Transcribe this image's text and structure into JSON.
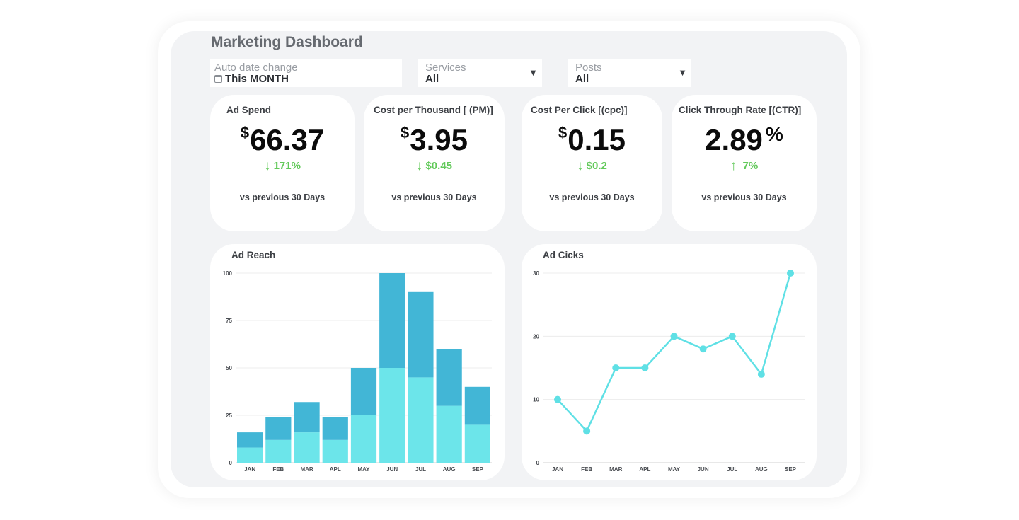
{
  "header": {
    "title": "Marketing Dashboard"
  },
  "filters": {
    "date": {
      "label": "Auto date change",
      "value": "This MONTH",
      "icon": "calendar-icon"
    },
    "services": {
      "label": "Services",
      "value": "All",
      "icon": "caret-down-icon"
    },
    "posts": {
      "label": "Posts",
      "value": "All",
      "icon": "caret-down-icon"
    }
  },
  "kpis": [
    {
      "title": "Ad Spend",
      "currency": "$",
      "value": "66.37",
      "change": "171%",
      "direction": "down",
      "comparison": "vs previous 30 Days"
    },
    {
      "title": "Cost per Thousand [ (PM)]",
      "currency": "$",
      "value": "3.95",
      "change": "$0.45",
      "direction": "down",
      "comparison": "vs previous 30 Days"
    },
    {
      "title": "Cost Per Click [(cpc)]",
      "currency": "$",
      "value": "0.15",
      "change": "$0.2",
      "direction": "down",
      "comparison": "vs previous 30 Days"
    },
    {
      "title": "Click Through Rate [(CTR)]",
      "value": "2.89",
      "unit": "%",
      "change": "7%",
      "direction": "up",
      "comparison": "vs previous 30 Days"
    }
  ],
  "colors": {
    "positive": "#62c95a",
    "bar_dark": "#42b6d6",
    "bar_light": "#6ce5ea",
    "line": "#5fe0e5"
  },
  "chart_data": [
    {
      "type": "bar",
      "title": "Ad  Reach",
      "stacked": true,
      "categories": [
        "JAN",
        "FEB",
        "MAR",
        "APL",
        "MAY",
        "JUN",
        "JUL",
        "AUG",
        "SEP"
      ],
      "series": [
        {
          "values": [
            8,
            12,
            16,
            12,
            25,
            50,
            45,
            30,
            20
          ]
        },
        {
          "values": [
            8,
            12,
            16,
            12,
            25,
            50,
            45,
            30,
            20
          ]
        }
      ],
      "yticks": [
        0,
        25,
        50,
        75,
        100
      ],
      "ylim": [
        0,
        100
      ],
      "grid": true
    },
    {
      "type": "line",
      "title": "Ad  Cicks",
      "categories": [
        "JAN",
        "FEB",
        "MAR",
        "APL",
        "MAY",
        "JUN",
        "JUL",
        "AUG",
        "SEP"
      ],
      "values": [
        10,
        5,
        15,
        15,
        20,
        18,
        20,
        14,
        30
      ],
      "yticks": [
        0,
        10,
        20,
        30
      ],
      "ylim": [
        0,
        30
      ],
      "grid": true
    }
  ]
}
